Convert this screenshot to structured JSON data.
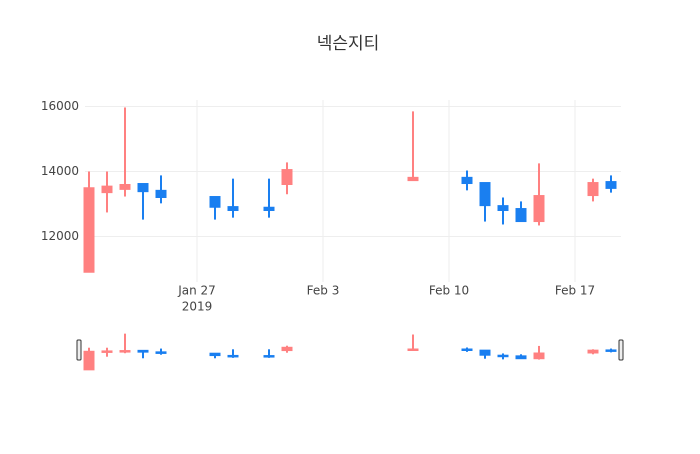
{
  "chart_data": {
    "type": "candlestick",
    "title": "넥슨지티",
    "x": [
      "2019-01-21",
      "2019-01-22",
      "2019-01-23",
      "2019-01-24",
      "2019-01-25",
      "2019-01-28",
      "2019-01-29",
      "2019-01-31",
      "2019-02-01",
      "2019-02-08",
      "2019-02-11",
      "2019-02-12",
      "2019-02-13",
      "2019-02-14",
      "2019-02-15",
      "2019-02-18",
      "2019-02-19"
    ],
    "open": [
      10900,
      13350,
      13450,
      13630,
      13420,
      13230,
      12920,
      12900,
      13600,
      13720,
      13820,
      13660,
      12950,
      12860,
      12460,
      13260,
      13690
    ],
    "high": [
      14000,
      14000,
      15970,
      13630,
      13880,
      13230,
      13780,
      13780,
      14280,
      15850,
      14030,
      13660,
      13200,
      13080,
      14250,
      13780,
      13880
    ],
    "low": [
      10900,
      12740,
      13230,
      12520,
      13020,
      12520,
      12580,
      12580,
      13300,
      13720,
      13420,
      12460,
      12370,
      12460,
      12340,
      13080,
      13350
    ],
    "close": [
      13500,
      13550,
      13600,
      13380,
      13200,
      12900,
      12800,
      12800,
      14060,
      13820,
      13630,
      12950,
      12800,
      12460,
      13260,
      13660,
      13480
    ],
    "increasing_color": "#ff8080",
    "decreasing_color": "#1a7ff0",
    "xlim": [
      "2019-01-20",
      "2019-02-20"
    ],
    "xticks": [
      {
        "value": "2019-01-27",
        "label": "Jan 27",
        "sublabel": "2019"
      },
      {
        "value": "2019-02-03",
        "label": "Feb 3"
      },
      {
        "value": "2019-02-10",
        "label": "Feb 10"
      },
      {
        "value": "2019-02-17",
        "label": "Feb 17"
      }
    ],
    "ylim": [
      10600,
      16200
    ],
    "yticks": [
      12000,
      14000,
      16000
    ],
    "grid": true,
    "rangeslider": true
  }
}
